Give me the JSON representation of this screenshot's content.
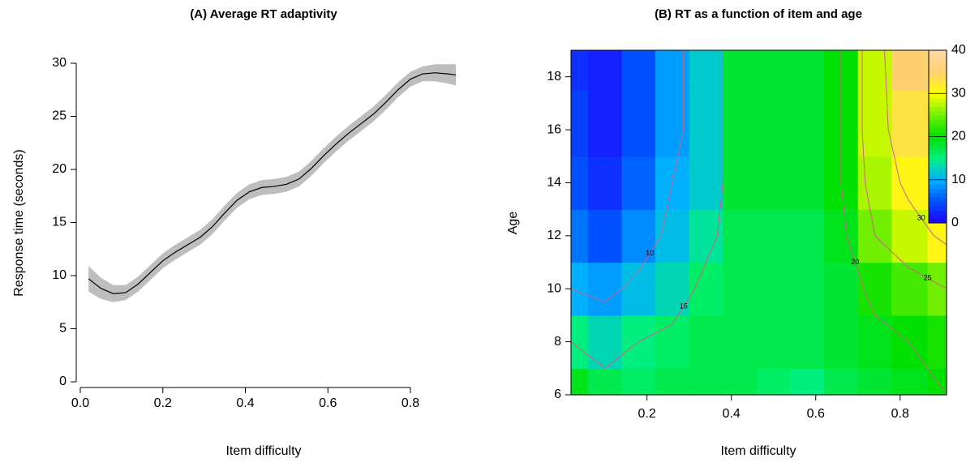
{
  "chart_data": [
    {
      "type": "line",
      "title": "(A) Average RT adaptivity",
      "x_label": "Item difficulty",
      "y_label": "Response time (seconds)",
      "x": [
        0.02,
        0.05,
        0.08,
        0.11,
        0.14,
        0.17,
        0.2,
        0.23,
        0.26,
        0.29,
        0.32,
        0.35,
        0.38,
        0.41,
        0.44,
        0.47,
        0.5,
        0.53,
        0.56,
        0.59,
        0.62,
        0.65,
        0.68,
        0.71,
        0.74,
        0.77,
        0.8,
        0.83,
        0.86,
        0.89,
        0.91
      ],
      "values": [
        9.7,
        8.8,
        8.3,
        8.4,
        9.2,
        10.3,
        11.4,
        12.2,
        12.9,
        13.6,
        14.6,
        15.9,
        17.1,
        17.9,
        18.3,
        18.4,
        18.6,
        19.1,
        20.1,
        21.3,
        22.4,
        23.4,
        24.3,
        25.2,
        26.3,
        27.5,
        28.5,
        29.0,
        29.1,
        29.0,
        28.9
      ],
      "upper": [
        10.9,
        9.8,
        9.1,
        9.1,
        9.9,
        11.0,
        12.1,
        12.9,
        13.6,
        14.3,
        15.3,
        16.6,
        17.8,
        18.6,
        19.0,
        19.1,
        19.3,
        19.8,
        20.8,
        22.0,
        23.1,
        24.1,
        25.0,
        25.9,
        27.0,
        28.2,
        29.2,
        29.7,
        29.9,
        29.9,
        29.9
      ],
      "lower": [
        8.5,
        7.8,
        7.5,
        7.7,
        8.5,
        9.6,
        10.7,
        11.5,
        12.2,
        12.9,
        13.9,
        15.2,
        16.4,
        17.2,
        17.6,
        17.7,
        17.9,
        18.4,
        19.4,
        20.6,
        21.7,
        22.7,
        23.6,
        24.5,
        25.6,
        26.8,
        27.8,
        28.3,
        28.3,
        28.1,
        27.9
      ],
      "color": "#000000",
      "band_color": "#bebebe",
      "xlim": [
        0,
        0.9
      ],
      "xticks": [
        {
          "value": 0,
          "label": "0.0"
        },
        0.2,
        0.4,
        0.6,
        0.8
      ],
      "ylim": [
        0,
        30
      ],
      "yticks": [
        0,
        5,
        10,
        15,
        20,
        25,
        30
      ]
    },
    {
      "type": "contour",
      "title": "(B) RT as a function of item and age",
      "x_label": "Item difficulty",
      "y_label": "Age",
      "x": [
        0.02,
        0.1,
        0.18,
        0.26,
        0.34,
        0.42,
        0.5,
        0.58,
        0.66,
        0.74,
        0.82,
        0.91
      ],
      "y": [
        6,
        8,
        10,
        12,
        14,
        16,
        19
      ],
      "z": [
        [
          19,
          17,
          16,
          17,
          17,
          17,
          16,
          15,
          17,
          18,
          19,
          20
        ],
        [
          15,
          13,
          15,
          16,
          17,
          17,
          17,
          17,
          18,
          19,
          20,
          21
        ],
        [
          10,
          9,
          11,
          13,
          16,
          17,
          17,
          17,
          18,
          21,
          23,
          25
        ],
        [
          7,
          5,
          8,
          11,
          14,
          17,
          17,
          17,
          19,
          25,
          28,
          31
        ],
        [
          5,
          3,
          6,
          10,
          12,
          18,
          18,
          18,
          20,
          27,
          31,
          33
        ],
        [
          4,
          2,
          5,
          9,
          12,
          18,
          18,
          18,
          20,
          28,
          33,
          35
        ],
        [
          3,
          2,
          5,
          9,
          12,
          18,
          18,
          18,
          20,
          28,
          35,
          38
        ]
      ],
      "xlim": [
        0.02,
        0.91
      ],
      "xticks": [
        0.2,
        0.4,
        0.6,
        0.8
      ],
      "ylim": [
        6,
        19
      ],
      "yticks": [
        6,
        8,
        10,
        12,
        14,
        16,
        18
      ],
      "zlim": [
        0,
        40
      ],
      "zticks": [
        0,
        10,
        20,
        30,
        40
      ],
      "colors": [
        "#2000ff",
        "#0050ff",
        "#00b0ff",
        "#00f080",
        "#00e000",
        "#70f000",
        "#ffff00",
        "#ffd070",
        "#ffd8a8"
      ],
      "contour_levels": [
        10,
        15,
        20,
        25,
        30
      ],
      "contour_color": "#d0608c"
    }
  ]
}
